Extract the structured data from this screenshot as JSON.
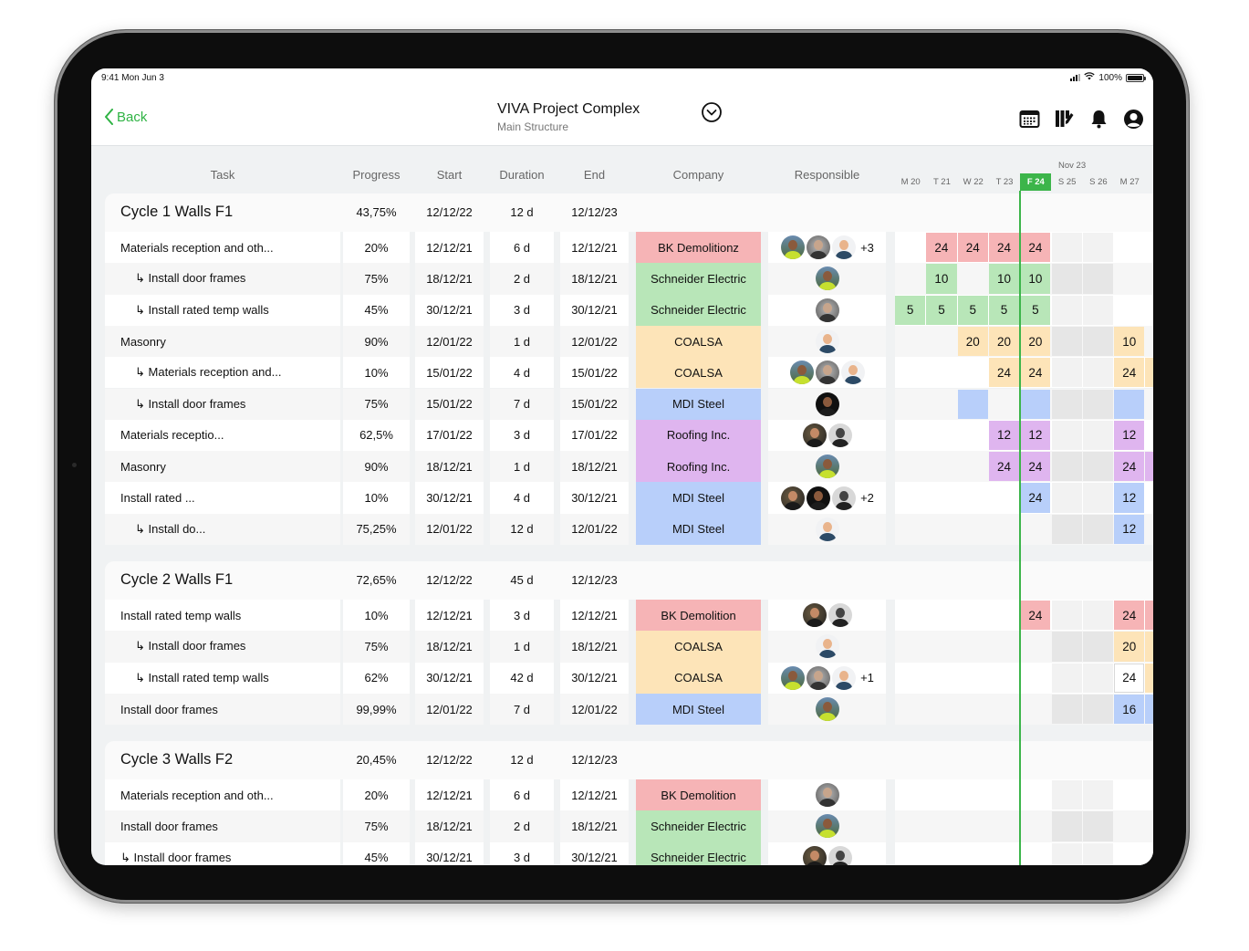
{
  "status_bar": {
    "time": "9:41 Mon Jun 3",
    "battery": "100%"
  },
  "nav": {
    "back_label": "Back",
    "title": "VIVA Project Complex",
    "subtitle": "Main Structure",
    "icons": [
      "calendar-icon",
      "books-edit-icon",
      "bell-icon",
      "account-icon"
    ]
  },
  "colors": {
    "accent": "#3cb54a",
    "company": {
      "red": "#f6b4b6",
      "green": "#b8e6b8",
      "orange": "#fde4b8",
      "blue": "#b8cffa",
      "purple": "#dfb5ef"
    }
  },
  "columns": {
    "task": "Task",
    "progress": "Progress",
    "start": "Start",
    "duration": "Duration",
    "end": "End",
    "company": "Company",
    "responsible": "Responsible"
  },
  "timeline": {
    "month": "Nov 23",
    "days": [
      "M 20",
      "T 21",
      "W 22",
      "T 23",
      "F 24",
      "S 25",
      "S 26",
      "M 27"
    ],
    "today_index": 4
  },
  "groups": [
    {
      "name": "Cycle 1 Walls F1",
      "progress": "43,75%",
      "start": "12/12/22",
      "duration": "12 d",
      "end": "12/12/23",
      "rows": [
        {
          "task": "Materials reception and oth...",
          "sub": false,
          "progress": "20%",
          "start": "12/12/21",
          "duration": "6 d",
          "end": "12/12/21",
          "company": "BK Demolitionz",
          "color": "red",
          "avatars": [
            "a1",
            "a2",
            "a3"
          ],
          "more": "+3",
          "gantt": [
            null,
            "24",
            "24",
            "24",
            "24",
            null,
            null,
            null,
            null
          ]
        },
        {
          "task": "↳ Install door frames",
          "sub": true,
          "progress": "75%",
          "start": "18/12/21",
          "duration": "2 d",
          "end": "18/12/21",
          "company": "Schneider Electric",
          "color": "green",
          "avatars": [
            "a1"
          ],
          "more": "",
          "gantt": [
            null,
            "10",
            null,
            "10",
            "10",
            null,
            null,
            null,
            null
          ]
        },
        {
          "task": "↳ Install rated temp walls",
          "sub": true,
          "progress": "45%",
          "start": "30/12/21",
          "duration": "3 d",
          "end": "30/12/21",
          "company": "Schneider Electric",
          "color": "green",
          "avatars": [
            "a2"
          ],
          "more": "",
          "gantt": [
            "5",
            "5",
            "5",
            "5",
            "5",
            null,
            null,
            null,
            null
          ]
        },
        {
          "task": "Masonry",
          "sub": false,
          "progress": "90%",
          "start": "12/01/22",
          "duration": "1 d",
          "end": "12/01/22",
          "company": "COALSA",
          "color": "orange",
          "avatars": [
            "a3"
          ],
          "more": "",
          "gantt": [
            null,
            null,
            "20",
            "20",
            "20",
            null,
            null,
            "10",
            null
          ]
        },
        {
          "task": "↳ Materials reception and...",
          "sub": true,
          "progress": "10%",
          "start": "15/01/22",
          "duration": "4 d",
          "end": "15/01/22",
          "company": "COALSA",
          "color": "orange",
          "avatars": [
            "a1",
            "a2",
            "a3"
          ],
          "more": "",
          "gantt": [
            null,
            null,
            null,
            "24",
            "24",
            null,
            null,
            "24",
            ""
          ]
        },
        {
          "task": "↳ Install door frames",
          "sub": true,
          "progress": "75%",
          "start": "15/01/22",
          "duration": "7 d",
          "end": "15/01/22",
          "company": "MDI Steel",
          "color": "blue",
          "avatars": [
            "a4"
          ],
          "more": "",
          "gantt": [
            null,
            null,
            "",
            null,
            "",
            null,
            null,
            "",
            null
          ]
        },
        {
          "task": "Materials receptio...",
          "sub": false,
          "progress": "62,5%",
          "start": "17/01/22",
          "duration": "3 d",
          "end": "17/01/22",
          "company": "Roofing Inc.",
          "color": "purple",
          "avatars": [
            "a5",
            "a6"
          ],
          "more": "",
          "gantt": [
            null,
            null,
            null,
            "12",
            "12",
            null,
            null,
            "12",
            null
          ]
        },
        {
          "task": "Masonry",
          "sub": false,
          "progress": "90%",
          "start": "18/12/21",
          "duration": "1 d",
          "end": "18/12/21",
          "company": "Roofing Inc.",
          "color": "purple",
          "avatars": [
            "a1"
          ],
          "more": "",
          "gantt": [
            null,
            null,
            null,
            "24",
            "24",
            null,
            null,
            "24",
            ""
          ]
        },
        {
          "task": "Install rated ...",
          "sub": false,
          "progress": "10%",
          "start": "30/12/21",
          "duration": "4 d",
          "end": "30/12/21",
          "company": "MDI Steel",
          "color": "blue",
          "avatars": [
            "a5",
            "a4",
            "a6"
          ],
          "more": "+2",
          "gantt": [
            null,
            null,
            null,
            null,
            "24",
            null,
            null,
            "12",
            null
          ]
        },
        {
          "task": "↳ Install do...",
          "sub": true,
          "progress": "75,25%",
          "start": "12/01/22",
          "duration": "12 d",
          "end": "12/01/22",
          "company": "MDI Steel",
          "color": "blue",
          "avatars": [
            "a3"
          ],
          "more": "",
          "gantt": [
            null,
            null,
            null,
            null,
            null,
            null,
            null,
            "12",
            null
          ]
        }
      ]
    },
    {
      "name": "Cycle 2 Walls F1",
      "progress": "72,65%",
      "start": "12/12/22",
      "duration": "45 d",
      "end": "12/12/23",
      "rows": [
        {
          "task": "Install rated temp walls",
          "sub": false,
          "progress": "10%",
          "start": "12/12/21",
          "duration": "3 d",
          "end": "12/12/21",
          "company": "BK Demolition",
          "color": "red",
          "avatars": [
            "a5",
            "a6"
          ],
          "more": "",
          "gantt": [
            null,
            null,
            null,
            null,
            "24",
            null,
            null,
            "24",
            ""
          ]
        },
        {
          "task": "↳ Install door frames",
          "sub": true,
          "progress": "75%",
          "start": "18/12/21",
          "duration": "1 d",
          "end": "18/12/21",
          "company": "COALSA",
          "color": "orange",
          "avatars": [
            "a3"
          ],
          "more": "",
          "gantt": [
            null,
            null,
            null,
            null,
            null,
            null,
            null,
            "20",
            ""
          ]
        },
        {
          "task": "↳ Install rated temp walls",
          "sub": true,
          "progress": "62%",
          "start": "30/12/21",
          "duration": "42 d",
          "end": "30/12/21",
          "company": "COALSA",
          "color": "orange",
          "avatars": [
            "a1",
            "a2",
            "a3"
          ],
          "more": "+1",
          "gantt": [
            null,
            null,
            null,
            null,
            null,
            null,
            null,
            "24w",
            ""
          ]
        },
        {
          "task": "Install door frames",
          "sub": false,
          "progress": "99,99%",
          "start": "12/01/22",
          "duration": "7 d",
          "end": "12/01/22",
          "company": "MDI Steel",
          "color": "blue",
          "avatars": [
            "a1"
          ],
          "more": "",
          "gantt": [
            null,
            null,
            null,
            null,
            null,
            null,
            null,
            "16",
            ""
          ]
        }
      ]
    },
    {
      "name": "Cycle 3 Walls F2",
      "progress": "20,45%",
      "start": "12/12/22",
      "duration": "12 d",
      "end": "12/12/23",
      "rows": [
        {
          "task": "Materials reception and oth...",
          "sub": false,
          "progress": "20%",
          "start": "12/12/21",
          "duration": "6 d",
          "end": "12/12/21",
          "company": "BK Demolition",
          "color": "red",
          "avatars": [
            "a2"
          ],
          "more": "",
          "gantt": [
            null,
            null,
            null,
            null,
            null,
            null,
            null,
            null,
            null
          ]
        },
        {
          "task": "Install door frames",
          "sub": false,
          "progress": "75%",
          "start": "18/12/21",
          "duration": "2 d",
          "end": "18/12/21",
          "company": "Schneider Electric",
          "color": "green",
          "avatars": [
            "a1"
          ],
          "more": "",
          "gantt": [
            null,
            null,
            null,
            null,
            null,
            null,
            null,
            null,
            null
          ]
        },
        {
          "task": "↳ Install door frames",
          "sub": false,
          "progress": "45%",
          "start": "30/12/21",
          "duration": "3 d",
          "end": "30/12/21",
          "company": "Schneider Electric",
          "color": "green",
          "avatars": [
            "a5",
            "a6"
          ],
          "more": "",
          "gantt": [
            null,
            null,
            null,
            null,
            null,
            null,
            null,
            null,
            null
          ]
        }
      ]
    }
  ]
}
